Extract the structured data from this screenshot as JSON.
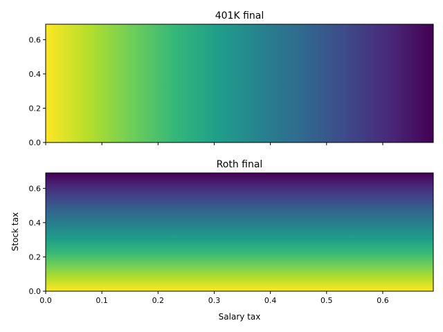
{
  "chart_data": [
    {
      "type": "heatmap",
      "title": "401K final",
      "xlabel": "",
      "ylabel": "",
      "xlim": [
        0.0,
        0.69
      ],
      "ylim": [
        0.0,
        0.69
      ],
      "x_ticks": [
        0.0,
        0.1,
        0.2,
        0.3,
        0.4,
        0.5,
        0.6
      ],
      "x_tick_labels": [
        "",
        "",
        "",
        "",
        "",
        "",
        ""
      ],
      "y_ticks": [
        0.0,
        0.2,
        0.4,
        0.6
      ],
      "y_tick_labels": [
        "0.0",
        "0.2",
        "0.4",
        "0.6"
      ],
      "gradient_axis": "x",
      "colormap": "viridis",
      "normalized_value_at_min": 1.0,
      "normalized_value_at_max": 0.0
    },
    {
      "type": "heatmap",
      "title": "Roth final",
      "xlabel": "Salary tax",
      "ylabel": "Stock tax",
      "xlim": [
        0.0,
        0.69
      ],
      "ylim": [
        0.0,
        0.69
      ],
      "x_ticks": [
        0.0,
        0.1,
        0.2,
        0.3,
        0.4,
        0.5,
        0.6
      ],
      "x_tick_labels": [
        "0.0",
        "0.1",
        "0.2",
        "0.3",
        "0.4",
        "0.5",
        "0.6"
      ],
      "y_ticks": [
        0.0,
        0.2,
        0.4,
        0.6
      ],
      "y_tick_labels": [
        "0.0",
        "0.2",
        "0.4",
        "0.6"
      ],
      "gradient_axis": "y",
      "colormap": "viridis",
      "normalized_value_at_min": 1.0,
      "normalized_value_at_max": 0.0
    }
  ],
  "colors": {
    "viridis_stops": [
      "#440154",
      "#482878",
      "#3e4989",
      "#31688e",
      "#26828e",
      "#1f9e89",
      "#35b779",
      "#6ece58",
      "#b5de2b",
      "#fde725"
    ]
  }
}
